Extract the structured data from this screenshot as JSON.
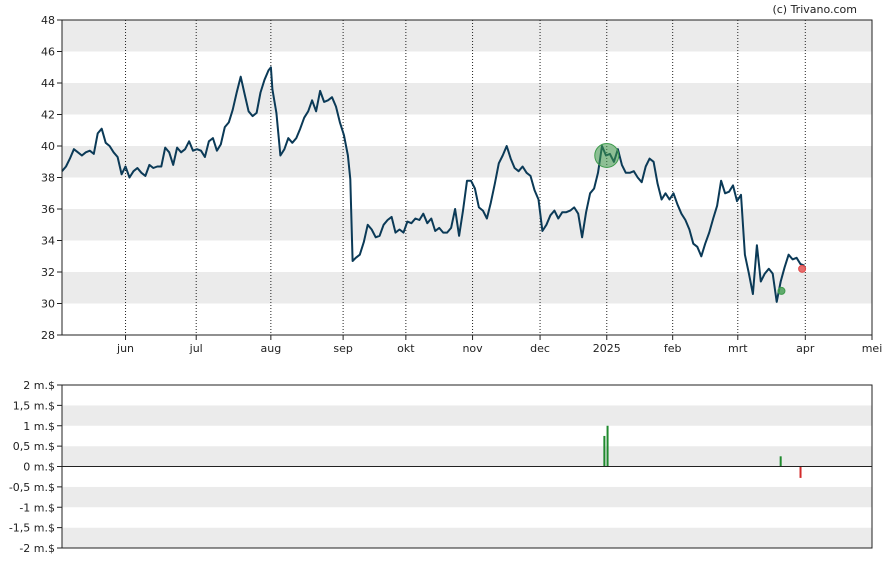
{
  "credit": "(c) Trivano.com",
  "chart_data": [
    {
      "type": "line",
      "title": "",
      "xlabel": "",
      "ylabel": "",
      "ylim": [
        28,
        48
      ],
      "yticks": [
        "28",
        "30",
        "32",
        "34",
        "36",
        "38",
        "40",
        "42",
        "44",
        "46",
        "48"
      ],
      "month_labels": [
        "jun",
        "jul",
        "aug",
        "sep",
        "okt",
        "nov",
        "dec",
        "2025",
        "feb",
        "mrt",
        "apr",
        "mei"
      ],
      "month_positions": [
        8.0,
        16.9,
        26.3,
        35.4,
        43.3,
        51.7,
        60.2,
        68.6,
        76.9,
        85.1,
        93.6,
        102.0
      ],
      "grid": true,
      "line_color": "#0b3a57",
      "series": [
        {
          "values": [
            [
              0,
              38.4
            ],
            [
              0.5,
              38.7
            ],
            [
              1,
              39.2
            ],
            [
              1.5,
              39.8
            ],
            [
              2,
              39.6
            ],
            [
              2.5,
              39.4
            ],
            [
              3,
              39.6
            ],
            [
              3.5,
              39.7
            ],
            [
              4,
              39.5
            ],
            [
              4.5,
              40.8
            ],
            [
              5,
              41.1
            ],
            [
              5.5,
              40.2
            ],
            [
              6,
              40.0
            ],
            [
              6.5,
              39.6
            ],
            [
              7,
              39.3
            ],
            [
              7.5,
              38.2
            ],
            [
              8,
              38.7
            ],
            [
              8.5,
              38.0
            ],
            [
              9,
              38.4
            ],
            [
              9.5,
              38.6
            ],
            [
              10,
              38.3
            ],
            [
              10.5,
              38.1
            ],
            [
              11,
              38.8
            ],
            [
              11.5,
              38.6
            ],
            [
              12,
              38.7
            ],
            [
              12.5,
              38.7
            ],
            [
              13,
              39.9
            ],
            [
              13.5,
              39.6
            ],
            [
              14,
              38.8
            ],
            [
              14.5,
              39.9
            ],
            [
              15,
              39.6
            ],
            [
              15.5,
              39.8
            ],
            [
              16,
              40.3
            ],
            [
              16.5,
              39.7
            ],
            [
              17,
              39.8
            ],
            [
              17.5,
              39.7
            ],
            [
              18,
              39.3
            ],
            [
              18.5,
              40.3
            ],
            [
              19,
              40.5
            ],
            [
              19.5,
              39.7
            ],
            [
              20,
              40.1
            ],
            [
              20.5,
              41.2
            ],
            [
              21,
              41.5
            ],
            [
              21.5,
              42.3
            ],
            [
              22,
              43.4
            ],
            [
              22.5,
              44.4
            ],
            [
              23,
              43.3
            ],
            [
              23.5,
              42.2
            ],
            [
              24,
              41.9
            ],
            [
              24.5,
              42.1
            ],
            [
              25,
              43.4
            ],
            [
              25.5,
              44.2
            ],
            [
              26,
              44.8
            ],
            [
              26.3,
              45.0
            ],
            [
              26.5,
              43.6
            ],
            [
              27,
              42.1
            ],
            [
              27.5,
              39.4
            ],
            [
              28,
              39.8
            ],
            [
              28.5,
              40.5
            ],
            [
              29,
              40.2
            ],
            [
              29.5,
              40.5
            ],
            [
              30,
              41.1
            ],
            [
              30.5,
              41.8
            ],
            [
              31,
              42.2
            ],
            [
              31.5,
              42.9
            ],
            [
              32,
              42.2
            ],
            [
              32.5,
              43.5
            ],
            [
              33,
              42.8
            ],
            [
              33.5,
              42.9
            ],
            [
              34,
              43.1
            ],
            [
              34.5,
              42.5
            ],
            [
              35,
              41.5
            ],
            [
              35.5,
              40.7
            ],
            [
              36,
              39.4
            ],
            [
              36.3,
              37.9
            ],
            [
              36.6,
              32.7
            ],
            [
              37,
              32.9
            ],
            [
              37.5,
              33.1
            ],
            [
              38,
              33.9
            ],
            [
              38.5,
              35.0
            ],
            [
              39,
              34.7
            ],
            [
              39.5,
              34.2
            ],
            [
              40,
              34.3
            ],
            [
              40.5,
              35.0
            ],
            [
              41,
              35.3
            ],
            [
              41.5,
              35.5
            ],
            [
              42,
              34.5
            ],
            [
              42.5,
              34.7
            ],
            [
              43,
              34.5
            ],
            [
              43.5,
              35.2
            ],
            [
              44,
              35.1
            ],
            [
              44.5,
              35.4
            ],
            [
              45,
              35.3
            ],
            [
              45.5,
              35.7
            ],
            [
              46,
              35.1
            ],
            [
              46.5,
              35.4
            ],
            [
              47,
              34.6
            ],
            [
              47.5,
              34.8
            ],
            [
              48,
              34.5
            ],
            [
              48.5,
              34.5
            ],
            [
              49,
              34.8
            ],
            [
              49.5,
              36.0
            ],
            [
              50,
              34.3
            ],
            [
              50.5,
              35.9
            ],
            [
              51,
              37.8
            ],
            [
              51.5,
              37.8
            ],
            [
              52,
              37.3
            ],
            [
              52.5,
              36.1
            ],
            [
              53,
              35.9
            ],
            [
              53.5,
              35.4
            ],
            [
              54,
              36.4
            ],
            [
              54.5,
              37.6
            ],
            [
              55,
              38.9
            ],
            [
              55.5,
              39.4
            ],
            [
              56,
              40.0
            ],
            [
              56.5,
              39.2
            ],
            [
              57,
              38.6
            ],
            [
              57.5,
              38.4
            ],
            [
              58,
              38.7
            ],
            [
              58.5,
              38.3
            ],
            [
              59,
              38.1
            ],
            [
              59.5,
              37.2
            ],
            [
              60,
              36.6
            ],
            [
              60.5,
              34.6
            ],
            [
              61,
              35.0
            ],
            [
              61.5,
              35.6
            ],
            [
              62,
              35.9
            ],
            [
              62.5,
              35.4
            ],
            [
              63,
              35.8
            ],
            [
              63.5,
              35.8
            ],
            [
              64,
              35.9
            ],
            [
              64.5,
              36.1
            ],
            [
              65,
              35.7
            ],
            [
              65.5,
              34.2
            ],
            [
              66,
              35.8
            ],
            [
              66.5,
              37.0
            ],
            [
              67,
              37.3
            ],
            [
              67.5,
              38.3
            ],
            [
              68,
              40.0
            ],
            [
              68.5,
              39.4
            ],
            [
              69,
              39.5
            ],
            [
              69.5,
              39.0
            ],
            [
              70,
              39.8
            ],
            [
              70.5,
              38.8
            ],
            [
              71,
              38.3
            ],
            [
              71.5,
              38.3
            ],
            [
              72,
              38.4
            ],
            [
              72.5,
              38.0
            ],
            [
              73,
              37.7
            ],
            [
              73.5,
              38.7
            ],
            [
              74,
              39.2
            ],
            [
              74.5,
              39.0
            ],
            [
              75,
              37.6
            ],
            [
              75.5,
              36.6
            ],
            [
              76,
              37.0
            ],
            [
              76.5,
              36.6
            ],
            [
              77,
              37.0
            ],
            [
              77.5,
              36.3
            ],
            [
              78,
              35.7
            ],
            [
              78.5,
              35.3
            ],
            [
              79,
              34.7
            ],
            [
              79.5,
              33.8
            ],
            [
              80,
              33.6
            ],
            [
              80.5,
              33.0
            ],
            [
              81,
              33.8
            ],
            [
              81.5,
              34.5
            ],
            [
              82,
              35.4
            ],
            [
              82.5,
              36.2
            ],
            [
              83,
              37.8
            ],
            [
              83.5,
              37.0
            ],
            [
              84,
              37.1
            ],
            [
              84.5,
              37.5
            ],
            [
              85,
              36.5
            ],
            [
              85.5,
              36.9
            ],
            [
              86,
              33.1
            ],
            [
              86.5,
              31.9
            ],
            [
              87,
              30.6
            ],
            [
              87.5,
              33.7
            ],
            [
              88,
              31.4
            ],
            [
              88.5,
              31.9
            ],
            [
              89,
              32.2
            ],
            [
              89.5,
              31.9
            ],
            [
              90,
              30.1
            ],
            [
              90.5,
              31.4
            ],
            [
              91,
              32.3
            ],
            [
              91.5,
              33.1
            ],
            [
              92,
              32.8
            ],
            [
              92.5,
              32.9
            ],
            [
              93,
              32.5
            ],
            [
              93.5,
              32.4
            ]
          ]
        }
      ],
      "markers": [
        {
          "x": 68.6,
          "y": 39.4,
          "color": "#3f9b4d",
          "size": "large"
        },
        {
          "x": 90.6,
          "y": 30.8,
          "color": "#3f9b4d",
          "size": "small"
        },
        {
          "x": 93.2,
          "y": 32.2,
          "color": "#e04848",
          "size": "small"
        }
      ]
    },
    {
      "type": "bar",
      "title": "",
      "ylim": [
        -2,
        2
      ],
      "yticks": [
        "-2 m.$",
        "-1,5 m.$",
        "-1 m.$",
        "-0,5 m.$",
        "0 m.$",
        "0,5 m.$",
        "1 m.$",
        "1,5 m.$",
        "2 m.$"
      ],
      "grid": true,
      "bars": [
        {
          "x": 68.3,
          "value": 0.75,
          "color": "#1f8a2e"
        },
        {
          "x": 68.7,
          "value": 1.0,
          "color": "#1f8a2e"
        },
        {
          "x": 90.5,
          "value": 0.25,
          "color": "#1f8a2e"
        },
        {
          "x": 93.0,
          "value": -0.28,
          "color": "#d22b2b"
        }
      ]
    }
  ]
}
